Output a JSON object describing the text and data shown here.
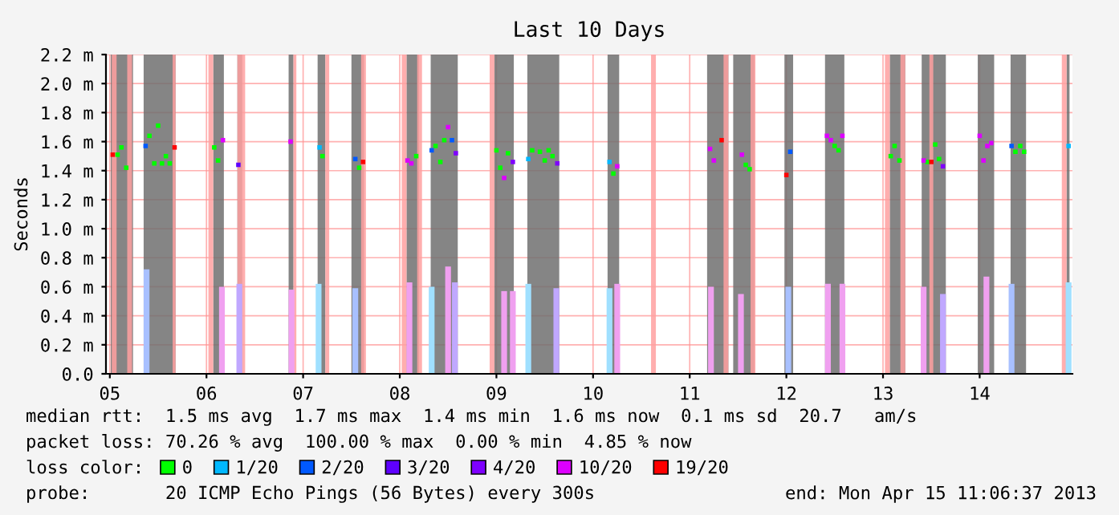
{
  "chart_data": {
    "type": "scatter",
    "title": "Last 10 Days",
    "ylabel": "Seconds",
    "xlim": [
      5.46,
      15.46
    ],
    "ylim": [
      0,
      2.2
    ],
    "xticks": [
      {
        "value": 5.5,
        "label": "05"
      },
      {
        "value": 6.5,
        "label": "06"
      },
      {
        "value": 7.5,
        "label": "07"
      },
      {
        "value": 8.5,
        "label": "08"
      },
      {
        "value": 9.5,
        "label": "09"
      },
      {
        "value": 10.5,
        "label": "10"
      },
      {
        "value": 11.5,
        "label": "11"
      },
      {
        "value": 12.5,
        "label": "12"
      },
      {
        "value": 13.5,
        "label": "13"
      },
      {
        "value": 14.5,
        "label": "14"
      }
    ],
    "yticks": [
      {
        "value": 0,
        "label": "0.0"
      },
      {
        "value": 0.2,
        "label": "0.2 m"
      },
      {
        "value": 0.4,
        "label": "0.4 m"
      },
      {
        "value": 0.6,
        "label": "0.6 m"
      },
      {
        "value": 0.8,
        "label": "0.8 m"
      },
      {
        "value": 1.0,
        "label": "1.0 m"
      },
      {
        "value": 1.2,
        "label": "1.2 m"
      },
      {
        "value": 1.4,
        "label": "1.4 m"
      },
      {
        "value": 1.6,
        "label": "1.6 m"
      },
      {
        "value": 1.8,
        "label": "1.8 m"
      },
      {
        "value": 2.0,
        "label": "2.0 m"
      },
      {
        "value": 2.2,
        "label": "2.2 m"
      }
    ],
    "grid": true,
    "marker": "square",
    "legend": "bottom",
    "legend_title": "loss color:",
    "bands": [
      {
        "axis": "x",
        "from": 5.51,
        "to": 5.74,
        "color": "#707070"
      },
      {
        "axis": "x",
        "from": 5.85,
        "to": 6.18,
        "color": "#707070"
      },
      {
        "axis": "x",
        "from": 6.57,
        "to": 6.68,
        "color": "#707070"
      },
      {
        "axis": "x",
        "from": 6.82,
        "to": 6.87,
        "color": "#707070"
      },
      {
        "axis": "x",
        "from": 7.35,
        "to": 7.4,
        "color": "#707070"
      },
      {
        "axis": "x",
        "from": 7.65,
        "to": 7.73,
        "color": "#707070"
      },
      {
        "axis": "x",
        "from": 8.0,
        "to": 8.13,
        "color": "#707070"
      },
      {
        "axis": "x",
        "from": 8.57,
        "to": 8.7,
        "color": "#707070"
      },
      {
        "axis": "x",
        "from": 8.82,
        "to": 9.1,
        "color": "#707070"
      },
      {
        "axis": "x",
        "from": 9.48,
        "to": 9.68,
        "color": "#707070"
      },
      {
        "axis": "x",
        "from": 9.82,
        "to": 10.15,
        "color": "#707070"
      },
      {
        "axis": "x",
        "from": 10.65,
        "to": 10.77,
        "color": "#707070"
      },
      {
        "axis": "x",
        "from": 11.68,
        "to": 11.9,
        "color": "#707070"
      },
      {
        "axis": "x",
        "from": 11.95,
        "to": 12.17,
        "color": "#707070"
      },
      {
        "axis": "x",
        "from": 12.48,
        "to": 12.57,
        "color": "#707070"
      },
      {
        "axis": "x",
        "from": 12.9,
        "to": 13.1,
        "color": "#707070"
      },
      {
        "axis": "x",
        "from": 13.57,
        "to": 13.73,
        "color": "#707070"
      },
      {
        "axis": "x",
        "from": 13.9,
        "to": 14.15,
        "color": "#707070"
      },
      {
        "axis": "x",
        "from": 14.48,
        "to": 14.65,
        "color": "#707070"
      },
      {
        "axis": "x",
        "from": 14.82,
        "to": 14.98,
        "color": "#707070"
      },
      {
        "axis": "x",
        "from": 15.4,
        "to": 15.43,
        "color": "#707070"
      },
      {
        "axis": "x",
        "from": 5.52,
        "to": 5.57,
        "color": "#ffa0a0"
      },
      {
        "axis": "x",
        "from": 5.68,
        "to": 5.73,
        "color": "#ffa0a0"
      },
      {
        "axis": "x",
        "from": 6.15,
        "to": 6.18,
        "color": "#ffa0a0"
      },
      {
        "axis": "x",
        "from": 6.52,
        "to": 6.57,
        "color": "#ffa0a0"
      },
      {
        "axis": "x",
        "from": 6.82,
        "to": 6.9,
        "color": "#ffa0a0"
      },
      {
        "axis": "x",
        "from": 7.4,
        "to": 7.43,
        "color": "#ffa0a0"
      },
      {
        "axis": "x",
        "from": 7.73,
        "to": 7.77,
        "color": "#ffa0a0"
      },
      {
        "axis": "x",
        "from": 8.1,
        "to": 8.15,
        "color": "#ffa0a0"
      },
      {
        "axis": "x",
        "from": 8.52,
        "to": 8.57,
        "color": "#ffa0a0"
      },
      {
        "axis": "x",
        "from": 8.68,
        "to": 8.73,
        "color": "#ffa0a0"
      },
      {
        "axis": "x",
        "from": 9.43,
        "to": 9.48,
        "color": "#ffa0a0"
      },
      {
        "axis": "x",
        "from": 11.1,
        "to": 11.15,
        "color": "#ffa0a0"
      },
      {
        "axis": "x",
        "from": 11.85,
        "to": 11.9,
        "color": "#ffa0a0"
      },
      {
        "axis": "x",
        "from": 12.13,
        "to": 12.18,
        "color": "#ffa0a0"
      },
      {
        "axis": "x",
        "from": 13.52,
        "to": 13.57,
        "color": "#ffa0a0"
      },
      {
        "axis": "x",
        "from": 13.68,
        "to": 13.73,
        "color": "#ffa0a0"
      },
      {
        "axis": "x",
        "from": 13.98,
        "to": 14.02,
        "color": "#ffa0a0"
      },
      {
        "axis": "x",
        "from": 15.35,
        "to": 15.4,
        "color": "#ffa0a0"
      }
    ],
    "series": [
      {
        "type": "bar",
        "x": [
          5.88,
          6.66,
          6.84,
          7.38,
          7.66,
          8.04,
          8.6,
          8.83,
          9.0,
          9.07,
          9.58,
          9.67,
          9.83,
          10.12,
          10.67,
          10.75,
          11.72,
          12.03,
          12.52,
          12.93,
          13.08,
          13.92,
          14.12,
          14.57,
          14.83,
          15.42
        ],
        "values": [
          0.72,
          0.6,
          0.62,
          0.58,
          0.62,
          0.59,
          0.63,
          0.6,
          0.74,
          0.63,
          0.57,
          0.57,
          0.62,
          0.59,
          0.59,
          0.62,
          0.6,
          0.55,
          0.6,
          0.62,
          0.62,
          0.6,
          0.55,
          0.67,
          0.62,
          0.63
        ],
        "colors": [
          "#a8c0ff",
          "#f0a0f0",
          "#c0a8ff",
          "#f0a0f0",
          "#a0e0ff",
          "#a8c0ff",
          "#f0a0f0",
          "#a0e0ff",
          "#f0a0f0",
          "#c0a8ff",
          "#f0a0f0",
          "#f0a0f0",
          "#a0e0ff",
          "#c0a8ff",
          "#a0e0ff",
          "#f0a0f0",
          "#f0a0f0",
          "#f0a0f0",
          "#a8c0ff",
          "#f0a0f0",
          "#f0a0f0",
          "#f0a0f0",
          "#c0a8ff",
          "#f0a0f0",
          "#a8c0ff",
          "#a0e0ff"
        ]
      },
      {
        "name": "0",
        "color": "#00ff00",
        "x": [
          5.58,
          5.62,
          5.67,
          5.91,
          6.0,
          5.96,
          6.04,
          6.08,
          6.12,
          6.58,
          6.62,
          7.7,
          8.08,
          8.67,
          8.87,
          8.92,
          8.96,
          9.5,
          9.54,
          9.62,
          9.87,
          9.95,
          10.0,
          10.04,
          10.08,
          10.71,
          12.08,
          12.12,
          13.0,
          13.04,
          13.58,
          13.62,
          13.67,
          13.96,
          14.04,
          14.08,
          14.87,
          14.92,
          14.96
        ],
        "values": [
          1.51,
          1.56,
          1.42,
          1.64,
          1.71,
          1.45,
          1.45,
          1.5,
          1.45,
          1.56,
          1.47,
          1.5,
          1.42,
          1.5,
          1.57,
          1.46,
          1.61,
          1.54,
          1.42,
          1.52,
          1.54,
          1.53,
          1.47,
          1.54,
          1.5,
          1.38,
          1.44,
          1.41,
          1.57,
          1.54,
          1.5,
          1.57,
          1.47,
          1.46,
          1.58,
          1.48,
          1.53,
          1.57,
          1.53
        ]
      },
      {
        "name": "1/20",
        "color": "#00b8ff",
        "x": [
          7.67,
          9.83,
          10.67,
          15.42
        ],
        "values": [
          1.56,
          1.48,
          1.46,
          1.57
        ]
      },
      {
        "name": "2/20",
        "color": "#0059ff",
        "x": [
          5.87,
          8.04,
          8.83,
          9.04,
          12.54,
          14.83
        ],
        "values": [
          1.57,
          1.48,
          1.54,
          1.61,
          1.53,
          1.57
        ]
      },
      {
        "name": "3/20",
        "color": "#5e00ff",
        "x": [
          6.83
        ],
        "values": [
          1.44
        ]
      },
      {
        "name": "4/20",
        "color": "#7e00ff",
        "x": [
          9.08,
          9.67,
          10.13,
          14.12
        ],
        "values": [
          1.52,
          1.46,
          1.45,
          1.43
        ]
      },
      {
        "name": "10/20",
        "color": "#dd00ff",
        "x": [
          6.67,
          7.37,
          8.58,
          8.62,
          9.0,
          9.58,
          10.75,
          11.71,
          11.75,
          12.04,
          12.92,
          12.96,
          13.08,
          13.92,
          14.5,
          14.54,
          14.58,
          14.62
        ],
        "values": [
          1.61,
          1.6,
          1.47,
          1.45,
          1.7,
          1.35,
          1.43,
          1.55,
          1.47,
          1.51,
          1.64,
          1.61,
          1.64,
          1.47,
          1.64,
          1.47,
          1.57,
          1.59
        ]
      },
      {
        "name": "19/20",
        "color": "#ff0000",
        "x": [
          5.53,
          6.17,
          8.12,
          11.83,
          12.5,
          14.0
        ],
        "values": [
          1.51,
          1.56,
          1.46,
          1.61,
          1.37,
          1.46
        ]
      }
    ],
    "annotations": [
      "median rtt:  1.5 ms avg  1.7 ms max  1.4 ms min  1.6 ms now  0.1 ms sd  20.7   am/s",
      "packet loss: 70.26 % avg  100.00 % max  0.00 % min  4.85 % now",
      "probe:       20 ICMP Echo Pings (56 Bytes) every 300s",
      "end: Mon Apr 15 11:06:37 2013"
    ]
  }
}
